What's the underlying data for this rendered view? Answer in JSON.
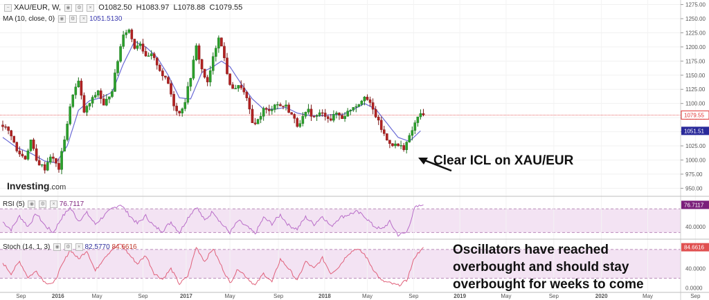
{
  "header": {
    "symbol": "XAU/EUR, W,",
    "open_label": "O1082.50",
    "high_label": "H1083.97",
    "low_label": "L1078.88",
    "close_label": "C1079.55",
    "ma_label": "MA (10, close, 0)",
    "ma_value": "1051.5130"
  },
  "rsi_header": {
    "label": "RSI (5)",
    "value": "76.7117"
  },
  "stoch_header": {
    "label": "Stoch (14, 1, 3)",
    "k_value": "82.5770",
    "d_value": "84.6616"
  },
  "logo": {
    "name": "Investing",
    "suffix": ".com"
  },
  "annotations": {
    "icl": "Clear ICL on XAU/EUR",
    "oscillators": [
      "Oscillators have reached",
      "overbought and should stay",
      "overbought for weeks to come"
    ]
  },
  "colors": {
    "up": "#2ca02c",
    "down": "#b22222",
    "ma": "#6b6bd6",
    "rsi": "#b86cc8",
    "stoch": "#e0607a",
    "band": "#f3e3f3",
    "last_line": "#e03030"
  },
  "chart_data": [
    {
      "type": "candlestick",
      "title": "XAU/EUR, W",
      "ylim": [
        937,
        1283
      ],
      "y_ticks": [
        950,
        975,
        1000,
        1025,
        1050,
        1075,
        1100,
        1125,
        1150,
        1175,
        1200,
        1225,
        1250,
        1275
      ],
      "y_tick_labels": [
        "950.00",
        "975.00",
        "1000.00",
        "1025.00",
        "1050.00",
        "1075.00",
        "1100.00",
        "1125.00",
        "1150.00",
        "1175.00",
        "1200.00",
        "1225.00",
        "1250.00",
        "1275.00"
      ],
      "x_labels": [
        "Sep",
        "2016",
        "May",
        "Sep",
        "2017",
        "May",
        "Sep",
        "2018",
        "May",
        "Sep",
        "2019",
        "May",
        "Sep",
        "2020",
        "May",
        "Sep"
      ],
      "x_label_weeks": [
        6.5,
        19.7,
        33.6,
        50,
        65.4,
        81,
        98.3,
        114.8,
        130,
        146.5,
        163,
        179.5,
        196.5,
        213.5,
        230,
        247
      ],
      "last_price": 1079.55,
      "last_price_label": "1079.55",
      "ma_last": 1051.51,
      "ma_last_label": "1051.51",
      "anchors_close": [
        [
          0,
          1062
        ],
        [
          3,
          1045
        ],
        [
          5,
          1015
        ],
        [
          8,
          1003
        ],
        [
          10,
          1035
        ],
        [
          12,
          998
        ],
        [
          15,
          985
        ],
        [
          17,
          1008
        ],
        [
          20,
          985
        ],
        [
          23,
          1065
        ],
        [
          25,
          1118
        ],
        [
          27,
          1138
        ],
        [
          29,
          1085
        ],
        [
          31,
          1100
        ],
        [
          34,
          1123
        ],
        [
          36,
          1095
        ],
        [
          39,
          1125
        ],
        [
          41,
          1176
        ],
        [
          43,
          1225
        ],
        [
          45,
          1230
        ],
        [
          47,
          1200
        ],
        [
          49,
          1208
        ],
        [
          51,
          1180
        ],
        [
          53,
          1185
        ],
        [
          55,
          1170
        ],
        [
          57,
          1150
        ],
        [
          59,
          1135
        ],
        [
          61,
          1098
        ],
        [
          63,
          1082
        ],
        [
          65,
          1105
        ],
        [
          67,
          1148
        ],
        [
          69,
          1200
        ],
        [
          71,
          1160
        ],
        [
          73,
          1135
        ],
        [
          75,
          1180
        ],
        [
          77,
          1220
        ],
        [
          79,
          1180
        ],
        [
          81,
          1130
        ],
        [
          83,
          1128
        ],
        [
          85,
          1130
        ],
        [
          87,
          1107
        ],
        [
          89,
          1065
        ],
        [
          91,
          1070
        ],
        [
          93,
          1090
        ],
        [
          95,
          1085
        ],
        [
          97,
          1100
        ],
        [
          99,
          1096
        ],
        [
          101,
          1095
        ],
        [
          103,
          1080
        ],
        [
          105,
          1062
        ],
        [
          107,
          1075
        ],
        [
          109,
          1087
        ],
        [
          111,
          1075
        ],
        [
          113,
          1082
        ],
        [
          115,
          1080
        ],
        [
          117,
          1072
        ],
        [
          119,
          1083
        ],
        [
          121,
          1075
        ],
        [
          123,
          1085
        ],
        [
          125,
          1095
        ],
        [
          127,
          1100
        ],
        [
          129,
          1115
        ],
        [
          131,
          1098
        ],
        [
          133,
          1078
        ],
        [
          135,
          1055
        ],
        [
          137,
          1035
        ],
        [
          139,
          1028
        ],
        [
          141,
          1025
        ],
        [
          143,
          1022
        ],
        [
          145,
          1040
        ],
        [
          147,
          1065
        ],
        [
          149,
          1083
        ],
        [
          150,
          1079.55
        ]
      ],
      "ma_series": [
        [
          0,
          1040
        ],
        [
          5,
          1022
        ],
        [
          10,
          1012
        ],
        [
          15,
          998
        ],
        [
          19,
          995
        ],
        [
          23,
          1025
        ],
        [
          27,
          1088
        ],
        [
          31,
          1105
        ],
        [
          35,
          1110
        ],
        [
          39,
          1120
        ],
        [
          43,
          1170
        ],
        [
          47,
          1210
        ],
        [
          51,
          1200
        ],
        [
          55,
          1182
        ],
        [
          59,
          1150
        ],
        [
          63,
          1110
        ],
        [
          67,
          1108
        ],
        [
          71,
          1155
        ],
        [
          75,
          1165
        ],
        [
          78,
          1175
        ],
        [
          81,
          1165
        ],
        [
          85,
          1135
        ],
        [
          89,
          1108
        ],
        [
          93,
          1090
        ],
        [
          97,
          1090
        ],
        [
          101,
          1093
        ],
        [
          105,
          1083
        ],
        [
          109,
          1079
        ],
        [
          113,
          1078
        ],
        [
          117,
          1080
        ],
        [
          121,
          1080
        ],
        [
          125,
          1089
        ],
        [
          129,
          1100
        ],
        [
          133,
          1090
        ],
        [
          137,
          1065
        ],
        [
          141,
          1040
        ],
        [
          145,
          1033
        ],
        [
          149,
          1051.51
        ]
      ]
    },
    {
      "type": "line",
      "title": "RSI (5)",
      "ylim": [
        20,
        90
      ],
      "y_ticks": [
        40
      ],
      "y_tick_labels": [
        "40.0000"
      ],
      "band": [
        30,
        70
      ],
      "last_value": 76.7117,
      "last_value_label": "76.7117",
      "anchors": [
        [
          0,
          48
        ],
        [
          3,
          35
        ],
        [
          6,
          58
        ],
        [
          9,
          40
        ],
        [
          12,
          62
        ],
        [
          15,
          42
        ],
        [
          18,
          30
        ],
        [
          21,
          55
        ],
        [
          24,
          72
        ],
        [
          27,
          50
        ],
        [
          30,
          63
        ],
        [
          33,
          44
        ],
        [
          36,
          58
        ],
        [
          39,
          70
        ],
        [
          42,
          78
        ],
        [
          45,
          60
        ],
        [
          48,
          45
        ],
        [
          51,
          58
        ],
        [
          54,
          40
        ],
        [
          57,
          33
        ],
        [
          60,
          48
        ],
        [
          63,
          30
        ],
        [
          66,
          55
        ],
        [
          69,
          74
        ],
        [
          72,
          50
        ],
        [
          75,
          66
        ],
        [
          78,
          45
        ],
        [
          81,
          30
        ],
        [
          84,
          50
        ],
        [
          87,
          40
        ],
        [
          90,
          28
        ],
        [
          93,
          55
        ],
        [
          96,
          45
        ],
        [
          99,
          60
        ],
        [
          102,
          42
        ],
        [
          105,
          36
        ],
        [
          108,
          56
        ],
        [
          111,
          44
        ],
        [
          114,
          58
        ],
        [
          117,
          40
        ],
        [
          120,
          55
        ],
        [
          123,
          60
        ],
        [
          126,
          65
        ],
        [
          129,
          58
        ],
        [
          132,
          42
        ],
        [
          135,
          35
        ],
        [
          138,
          48
        ],
        [
          141,
          26
        ],
        [
          144,
          30
        ],
        [
          147,
          72
        ],
        [
          150,
          76.7
        ]
      ]
    },
    {
      "type": "line",
      "title": "Stoch (14, 1, 3)",
      "ylim": [
        -8,
        100
      ],
      "y_ticks": [
        0,
        40
      ],
      "y_tick_labels": [
        "0.0000",
        "40.0000"
      ],
      "band": [
        20,
        80
      ],
      "last_value": 84.6616,
      "last_value_label": "84.6616",
      "anchors": [
        [
          0,
          52
        ],
        [
          3,
          30
        ],
        [
          6,
          55
        ],
        [
          9,
          22
        ],
        [
          12,
          35
        ],
        [
          15,
          12
        ],
        [
          18,
          8
        ],
        [
          21,
          45
        ],
        [
          24,
          80
        ],
        [
          27,
          60
        ],
        [
          30,
          78
        ],
        [
          33,
          35
        ],
        [
          36,
          62
        ],
        [
          39,
          80
        ],
        [
          42,
          92
        ],
        [
          45,
          70
        ],
        [
          48,
          50
        ],
        [
          51,
          68
        ],
        [
          54,
          30
        ],
        [
          57,
          18
        ],
        [
          60,
          40
        ],
        [
          63,
          8
        ],
        [
          66,
          25
        ],
        [
          69,
          85
        ],
        [
          72,
          55
        ],
        [
          75,
          82
        ],
        [
          78,
          45
        ],
        [
          81,
          10
        ],
        [
          84,
          40
        ],
        [
          87,
          22
        ],
        [
          90,
          5
        ],
        [
          93,
          30
        ],
        [
          96,
          12
        ],
        [
          99,
          60
        ],
        [
          102,
          40
        ],
        [
          105,
          15
        ],
        [
          108,
          55
        ],
        [
          111,
          40
        ],
        [
          114,
          62
        ],
        [
          117,
          30
        ],
        [
          120,
          45
        ],
        [
          123,
          70
        ],
        [
          126,
          82
        ],
        [
          129,
          70
        ],
        [
          132,
          40
        ],
        [
          135,
          15
        ],
        [
          138,
          10
        ],
        [
          141,
          5
        ],
        [
          144,
          15
        ],
        [
          147,
          65
        ],
        [
          150,
          84.66
        ]
      ]
    }
  ]
}
